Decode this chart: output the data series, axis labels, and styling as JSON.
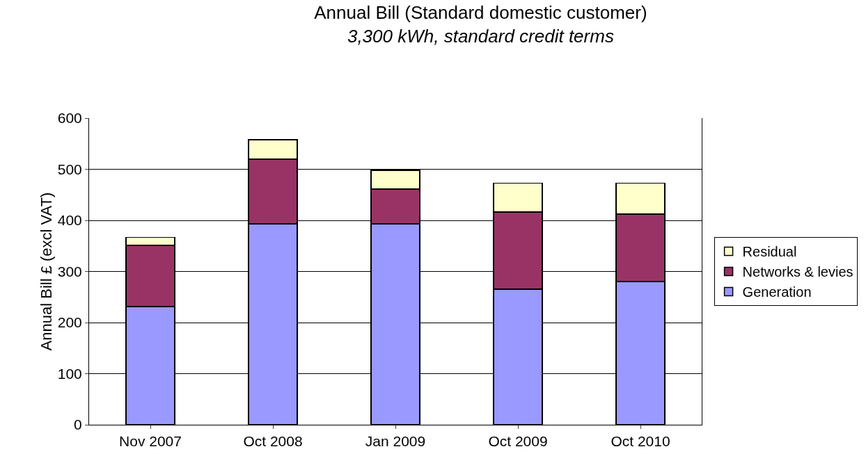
{
  "chart_data": {
    "type": "bar",
    "title": "Annual Bill (Standard domestic customer)",
    "subtitle": "3,300 kWh, standard credit terms",
    "ylabel": "Annual Bill £ (excl VAT)",
    "categories": [
      "Nov 2007",
      "Oct 2008",
      "Jan 2009",
      "Oct 2009",
      "Oct 2010"
    ],
    "stacked": true,
    "series": [
      {
        "name": "Generation",
        "color": "#9999ff",
        "values": [
          231,
          393,
          393,
          265,
          280
        ]
      },
      {
        "name": "Networks & levies",
        "color": "#993366",
        "values": [
          120,
          127,
          68,
          151,
          132
        ]
      },
      {
        "name": "Residual",
        "color": "#ffffcc",
        "values": [
          16,
          38,
          37,
          57,
          61
        ]
      }
    ],
    "ylim": [
      0,
      600
    ],
    "yticks": [
      0,
      100,
      200,
      300,
      400,
      500,
      600
    ],
    "grid": "y",
    "legend": "right"
  }
}
